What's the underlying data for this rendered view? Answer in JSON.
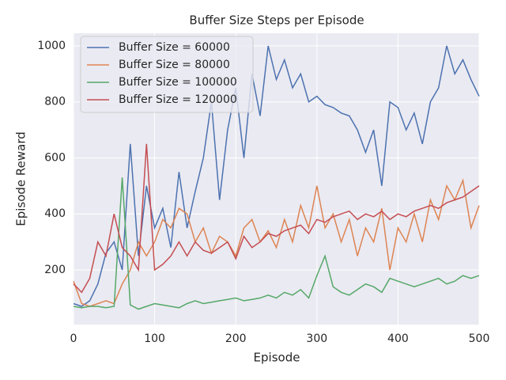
{
  "chart_data": {
    "type": "line",
    "title": "Buffer Size Steps per Episode",
    "xlabel": "Episode",
    "ylabel": "Episode Reward",
    "x": [
      0,
      10,
      20,
      30,
      40,
      50,
      60,
      70,
      80,
      90,
      100,
      110,
      120,
      130,
      140,
      150,
      160,
      170,
      180,
      190,
      200,
      210,
      220,
      230,
      240,
      250,
      260,
      270,
      280,
      290,
      300,
      310,
      320,
      330,
      340,
      350,
      360,
      370,
      380,
      390,
      400,
      410,
      420,
      430,
      440,
      450,
      460,
      470,
      480,
      490,
      500
    ],
    "xlim": [
      0,
      500
    ],
    "xticks": [
      0,
      100,
      200,
      300,
      400,
      500
    ],
    "ylim": [
      5,
      1045
    ],
    "yticks": [
      200,
      400,
      600,
      800,
      1000
    ],
    "grid": true,
    "legend": "upper left",
    "series": [
      {
        "name": "Buffer Size = 60000",
        "color": "#4c72b0",
        "values": [
          80,
          70,
          90,
          150,
          260,
          300,
          200,
          650,
          250,
          500,
          350,
          420,
          280,
          550,
          350,
          480,
          600,
          800,
          450,
          700,
          850,
          600,
          900,
          750,
          1000,
          880,
          950,
          850,
          900,
          800,
          820,
          790,
          780,
          760,
          750,
          700,
          620,
          700,
          500,
          800,
          780,
          700,
          760,
          650,
          800,
          850,
          1000,
          900,
          950,
          880,
          820
        ]
      },
      {
        "name": "Buffer Size = 80000",
        "color": "#dd8452",
        "values": [
          160,
          80,
          70,
          80,
          90,
          80,
          150,
          200,
          300,
          250,
          300,
          380,
          350,
          420,
          400,
          300,
          350,
          260,
          320,
          300,
          250,
          350,
          380,
          300,
          340,
          280,
          380,
          300,
          430,
          350,
          500,
          350,
          400,
          300,
          380,
          250,
          350,
          300,
          420,
          200,
          350,
          300,
          400,
          300,
          450,
          380,
          500,
          450,
          520,
          350,
          430
        ]
      },
      {
        "name": "Buffer Size = 100000",
        "color": "#55a868",
        "values": [
          70,
          65,
          70,
          70,
          65,
          70,
          530,
          75,
          60,
          70,
          80,
          75,
          70,
          65,
          80,
          90,
          80,
          85,
          90,
          95,
          100,
          90,
          95,
          100,
          110,
          100,
          120,
          110,
          130,
          100,
          180,
          250,
          140,
          120,
          110,
          130,
          150,
          140,
          120,
          170,
          160,
          150,
          140,
          150,
          160,
          170,
          150,
          160,
          180,
          170,
          180
        ]
      },
      {
        "name": "Buffer Size = 120000",
        "color": "#c44e52",
        "values": [
          150,
          120,
          170,
          300,
          250,
          400,
          280,
          250,
          200,
          650,
          200,
          220,
          250,
          300,
          250,
          300,
          270,
          260,
          280,
          300,
          240,
          320,
          280,
          300,
          330,
          320,
          340,
          350,
          360,
          330,
          380,
          370,
          390,
          400,
          410,
          380,
          400,
          390,
          410,
          380,
          400,
          390,
          410,
          420,
          430,
          420,
          440,
          450,
          460,
          480,
          500
        ]
      }
    ]
  }
}
